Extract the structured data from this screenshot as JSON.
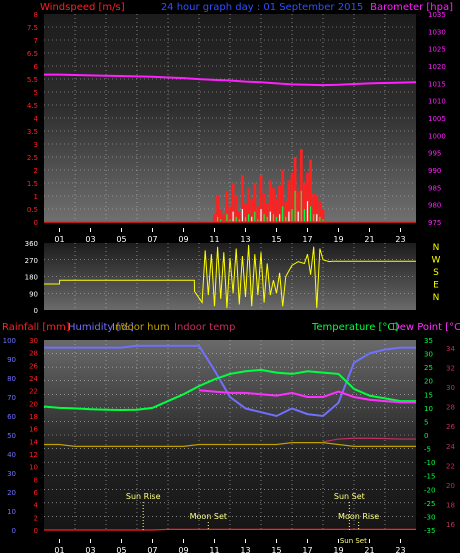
{
  "colors": {
    "background": "#000000",
    "plot_top": "#6e6e6e",
    "plot_bottom": "#1c1c1c",
    "grid": "#c0c0c0",
    "wind_label": "#ff2020",
    "title": "#3050ff",
    "barometer": "#ff20ff",
    "direction": "#ffff00",
    "rain": "#ff2020",
    "humidity": "#7070ff",
    "indoor_hum": "#c0a000",
    "indoor_temp": "#c03060",
    "temperature": "#00ff40",
    "dew_point": "#ff30ff",
    "axis_text": "#ffffff",
    "sun_moon": "#ffff80"
  },
  "header": {
    "left": "Windspeed [m/s]",
    "center": "24 hour graph day : 01 September 2015",
    "right": "Barometer [hpa]"
  },
  "footer": {
    "rain": "Rainfall [mm]",
    "humidity": "Humidity [%]",
    "indoor_hum": "Indoor hum",
    "indoor_temp": "Indoor temp",
    "temperature": "Temperature [°C]",
    "dew_point": "Dew Point [°C]"
  },
  "x_ticks": [
    "01",
    "03",
    "05",
    "07",
    "09",
    "11",
    "13",
    "15",
    "17",
    "19",
    "21",
    "23"
  ],
  "markers": {
    "sun_rise": "Sun Rise",
    "sun_set": "Sun Set",
    "moon_set": "Moon Set",
    "moon_rise": "Moon Rise",
    "sun_set_bottom": "Sun Set"
  },
  "chart_data": [
    {
      "type": "bar",
      "name": "wind-barometer",
      "x_hours": [
        0,
        1,
        2,
        3,
        4,
        5,
        6,
        7,
        8,
        9,
        10,
        11,
        12,
        13,
        14,
        15,
        16,
        17,
        18,
        19,
        20,
        21,
        22,
        23,
        24
      ],
      "barometer_hpa": [
        1017.5,
        1017.5,
        1017.4,
        1017.3,
        1017.2,
        1017.1,
        1017.0,
        1016.9,
        1016.7,
        1016.5,
        1016.2,
        1016.0,
        1015.8,
        1015.5,
        1015.3,
        1015.0,
        1014.7,
        1014.6,
        1014.5,
        1014.6,
        1014.8,
        1015.0,
        1015.1,
        1015.2,
        1015.3
      ],
      "wind_gust_hours": [
        11.0,
        11.2,
        11.4,
        11.6,
        11.8,
        12.0,
        12.2,
        12.4,
        12.6,
        12.8,
        13.0,
        13.2,
        13.4,
        13.6,
        13.8,
        14.0,
        14.2,
        14.4,
        14.6,
        14.8,
        15.0,
        15.2,
        15.4,
        15.6,
        15.8,
        16.0,
        16.2,
        16.4,
        16.6,
        16.8,
        17.0,
        17.2,
        17.4,
        17.6,
        17.8,
        18.0
      ],
      "wind_gust_ms": [
        0.3,
        1.0,
        0.5,
        0.3,
        1.2,
        0.6,
        1.5,
        1.0,
        0.4,
        1.8,
        0.7,
        1.3,
        0.9,
        1.5,
        0.6,
        1.8,
        1.1,
        0.7,
        1.6,
        1.3,
        0.9,
        1.4,
        2.0,
        0.8,
        1.6,
        1.9,
        2.5,
        1.2,
        2.8,
        1.5,
        1.9,
        2.4,
        1.1,
        1.0,
        0.8,
        0.5
      ],
      "wind_avg_ms": [
        0.0,
        0.2,
        0.1,
        0.0,
        0.3,
        0.1,
        0.4,
        0.2,
        0.1,
        0.5,
        0.2,
        0.3,
        0.2,
        0.4,
        0.1,
        0.5,
        0.3,
        0.2,
        0.4,
        0.3,
        0.2,
        0.3,
        0.6,
        0.2,
        0.4,
        0.5,
        1.2,
        0.4,
        1.2,
        0.5,
        0.8,
        0.6,
        0.3,
        0.3,
        0.2,
        0.1
      ],
      "y_left": {
        "min": 0,
        "max": 8,
        "ticks": [
          "0",
          "0.5",
          "1",
          "1.5",
          "2",
          "2.5",
          "3",
          "3.5",
          "4",
          "4.5",
          "5",
          "5.5",
          "6",
          "6.5",
          "7",
          "7.5",
          "8"
        ]
      },
      "y_right": {
        "min": 975,
        "max": 1035,
        "ticks": [
          "975",
          "980",
          "985",
          "990",
          "995",
          "1000",
          "1005",
          "1010",
          "1015",
          "1020",
          "1025",
          "1030",
          "1035"
        ]
      }
    },
    {
      "type": "line",
      "name": "wind-direction",
      "x_hours": [
        0,
        1,
        1.01,
        9.7,
        9.71,
        10.2,
        10.4,
        10.6,
        10.8,
        11.0,
        11.2,
        11.4,
        11.6,
        11.8,
        12.0,
        12.2,
        12.4,
        12.6,
        12.8,
        13.0,
        13.2,
        13.4,
        13.6,
        13.8,
        14.0,
        14.2,
        14.4,
        14.6,
        14.8,
        15.0,
        15.2,
        15.4,
        15.6,
        15.8,
        16.0,
        16.4,
        16.8,
        17.0,
        17.2,
        17.4,
        17.6,
        17.8,
        18.0,
        18.2,
        18.4,
        18.6,
        24.0
      ],
      "direction_deg": [
        140,
        140,
        160,
        160,
        100,
        40,
        320,
        80,
        300,
        20,
        340,
        60,
        310,
        10,
        280,
        90,
        330,
        30,
        290,
        70,
        350,
        20,
        300,
        80,
        310,
        40,
        250,
        80,
        160,
        90,
        200,
        20,
        180,
        210,
        240,
        260,
        250,
        300,
        190,
        340,
        10,
        330,
        270,
        265,
        260,
        262,
        262
      ],
      "y_left_ticks": [
        "0",
        "90",
        "180",
        "270",
        "360"
      ],
      "y_right_labels": [
        "N",
        "W",
        "S",
        "E",
        "N"
      ]
    },
    {
      "type": "line",
      "name": "temp-hum-rain",
      "x_hours": [
        0,
        1,
        2,
        3,
        4,
        5,
        6,
        7,
        8,
        9,
        10,
        11,
        12,
        13,
        14,
        15,
        16,
        17,
        18,
        19,
        20,
        21,
        22,
        23,
        24
      ],
      "series": [
        {
          "name": "Humidity [%]",
          "axis": "hum",
          "values": [
            96,
            96,
            96,
            96,
            96,
            96,
            97,
            97,
            97,
            97,
            97,
            84,
            70,
            64,
            62,
            60,
            64,
            61,
            60,
            67,
            88,
            93,
            95,
            96,
            96
          ]
        },
        {
          "name": "Temperature [°C]",
          "axis": "temp",
          "values": [
            10.5,
            10.0,
            9.8,
            9.5,
            9.3,
            9.2,
            9.3,
            10.0,
            12.5,
            15.0,
            18.0,
            20.5,
            22.5,
            23.5,
            24.0,
            23.0,
            22.5,
            23.5,
            23.0,
            22.5,
            17.0,
            14.5,
            13.5,
            12.5,
            12.5
          ]
        },
        {
          "name": "Dew Point [°C]",
          "axis": "temp",
          "values": [
            null,
            null,
            null,
            null,
            null,
            null,
            null,
            null,
            null,
            null,
            16.5,
            16.0,
            15.5,
            15.5,
            15.0,
            14.5,
            15.5,
            14.0,
            14.0,
            16.0,
            14.0,
            13.0,
            12.5,
            12.0,
            12.0
          ]
        },
        {
          "name": "Indoor temp",
          "axis": "temp",
          "values": [
            null,
            null,
            null,
            null,
            null,
            null,
            null,
            null,
            null,
            null,
            null,
            null,
            null,
            null,
            null,
            null,
            null,
            null,
            -2.5,
            -1.5,
            -1.2,
            -1.2,
            -1.3,
            -1.5,
            -1.5
          ]
        },
        {
          "name": "Indoor hum",
          "axis": "hum",
          "values": [
            45,
            45,
            44,
            44,
            44,
            44,
            44,
            44,
            44,
            44,
            45,
            45,
            45,
            45,
            45,
            45,
            46,
            46,
            46,
            45,
            44,
            44,
            44,
            44,
            44
          ]
        },
        {
          "name": "Rainfall [mm]",
          "axis": "rain",
          "values": [
            0,
            0,
            0,
            0,
            0,
            0,
            0,
            0,
            0.1,
            0.1,
            0.1,
            0.1,
            0.1,
            0.1,
            0.1,
            0.1,
            0.1,
            0.1,
            0.1,
            0.1,
            0.1,
            0.1,
            0.1,
            0.1,
            0.1
          ]
        }
      ],
      "hum_ticks": [
        "0",
        "10",
        "20",
        "30",
        "40",
        "50",
        "60",
        "70",
        "80",
        "90",
        "100"
      ],
      "rain_ticks": [
        "0",
        "2",
        "4",
        "6",
        "8",
        "10",
        "12",
        "14",
        "16",
        "18",
        "20",
        "22",
        "24",
        "26",
        "28",
        "30"
      ],
      "temp_ticks": [
        "35",
        "30",
        "25",
        "20",
        "15",
        "10",
        "5",
        "0",
        "-5",
        "-10",
        "-15",
        "-20",
        "-25",
        "-30",
        "-35"
      ],
      "indoor_ticks": [
        "34",
        "32",
        "30",
        "28",
        "26",
        "24",
        "22",
        "20",
        "18",
        "16"
      ],
      "markers_hours": {
        "sun_rise": 6.4,
        "sun_set": 19.7,
        "moon_set": 10.6,
        "moon_rise": 20.3
      }
    }
  ]
}
